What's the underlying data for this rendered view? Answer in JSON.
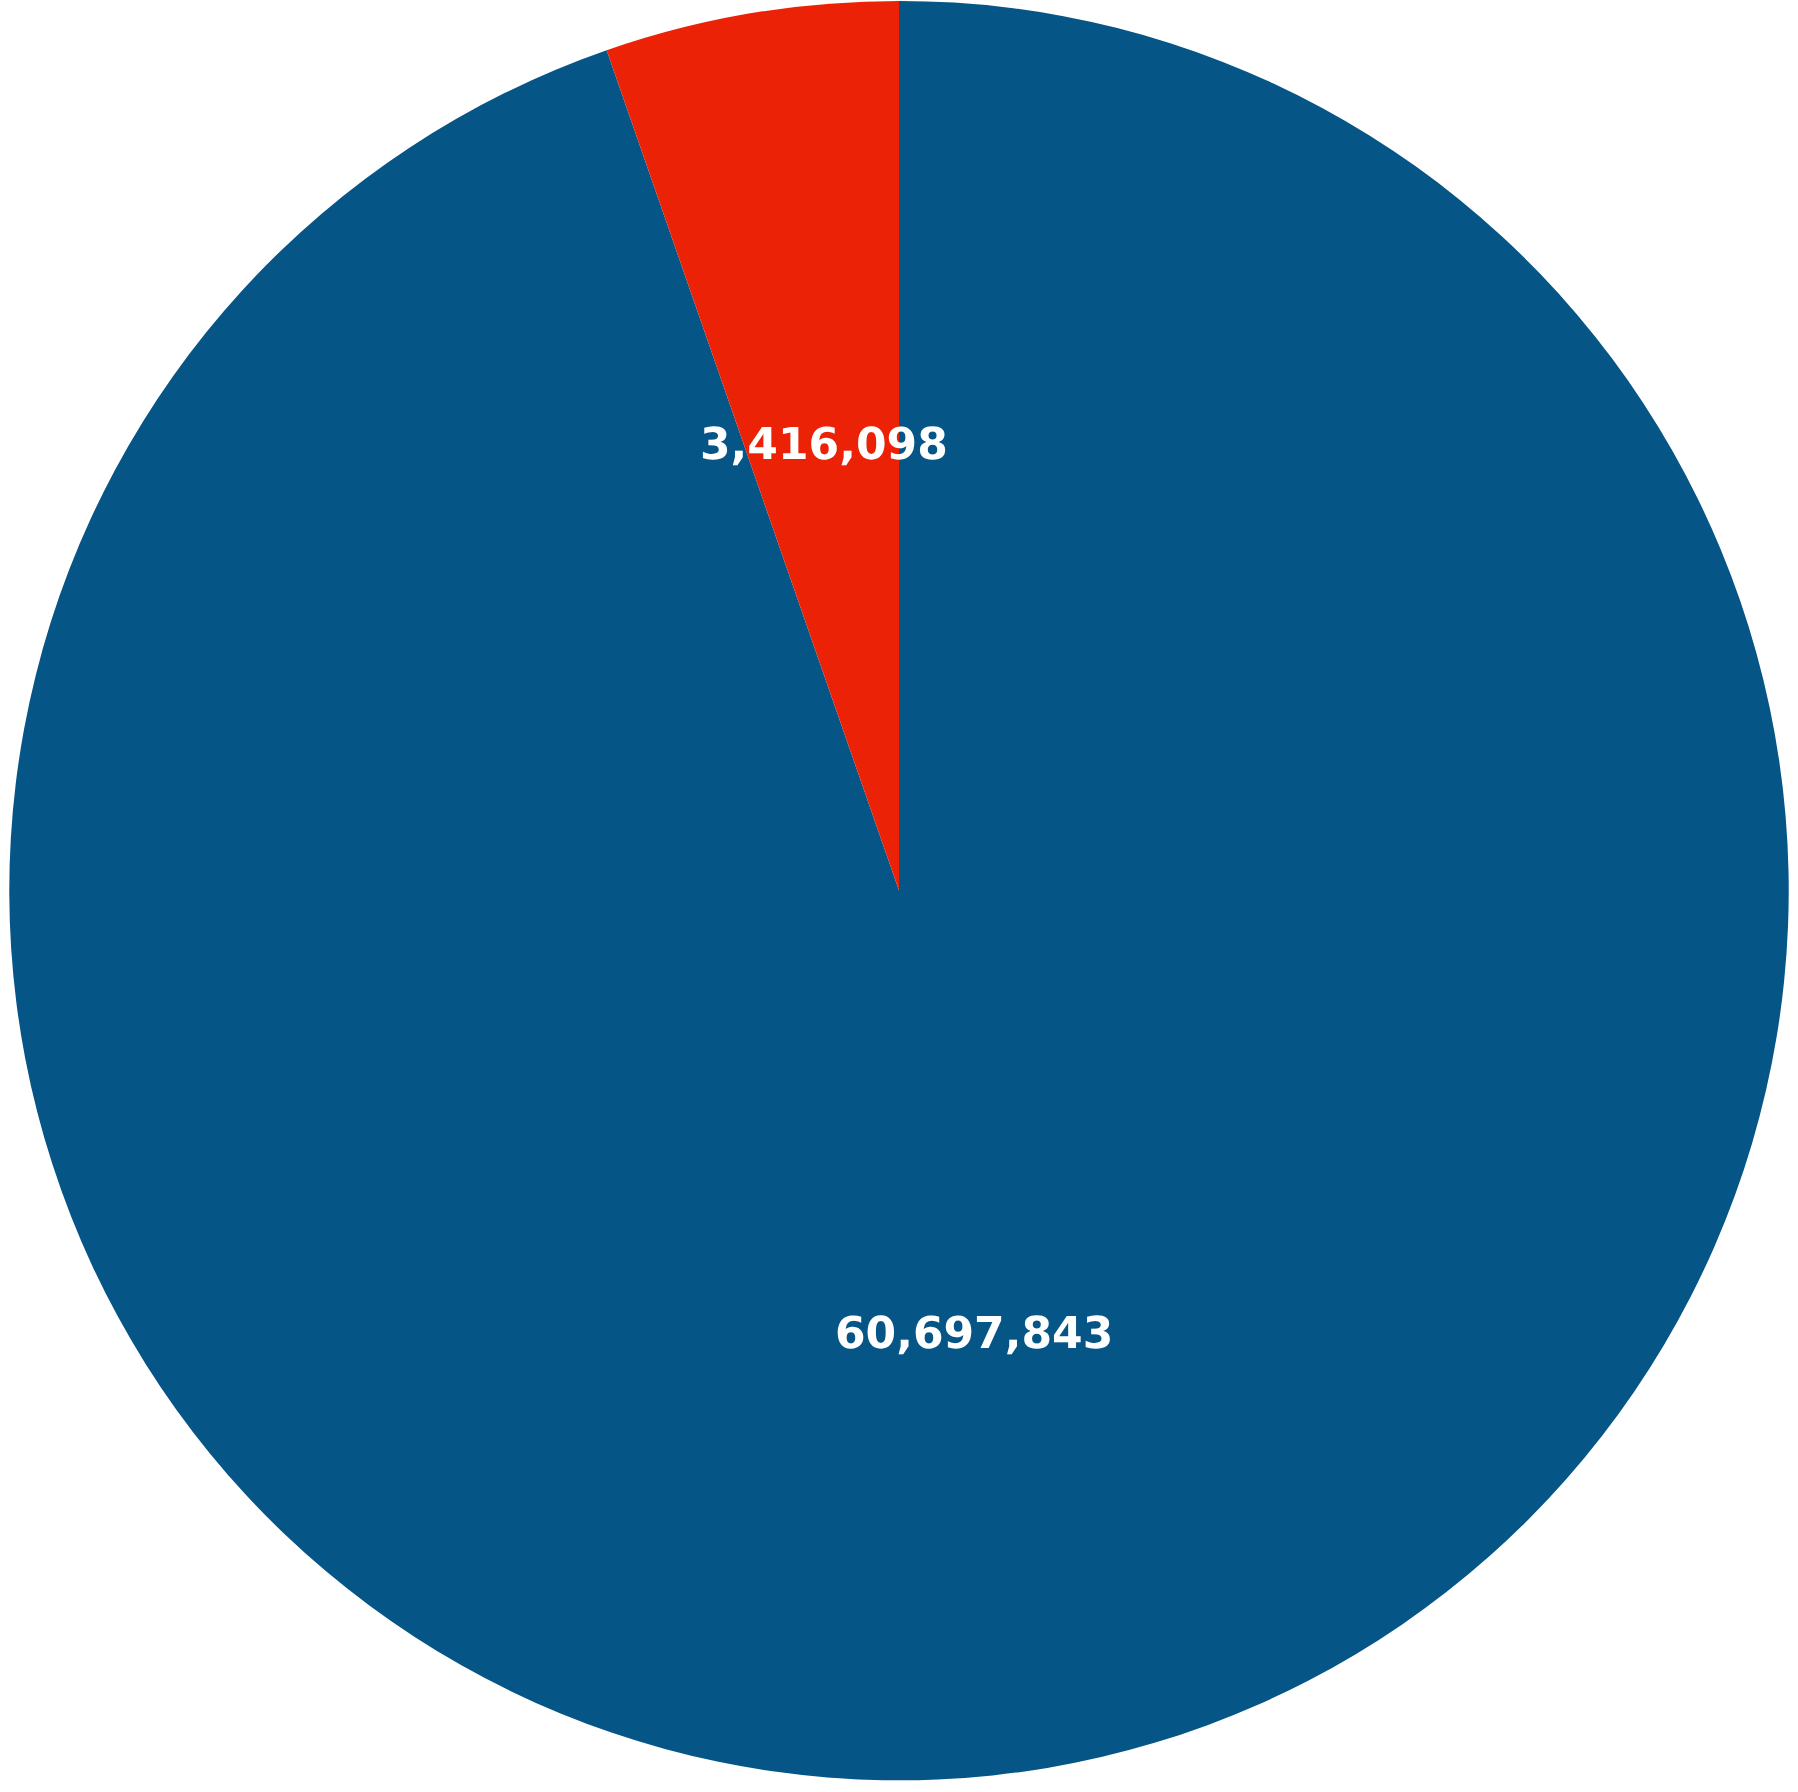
{
  "chart_data": {
    "type": "pie",
    "categories": [
      null,
      null
    ],
    "values": [
      60697843,
      3416098
    ],
    "colors": [
      "#065587",
      "#ec2207"
    ],
    "value_labels": [
      "60,697,843",
      "3,416,098"
    ]
  }
}
